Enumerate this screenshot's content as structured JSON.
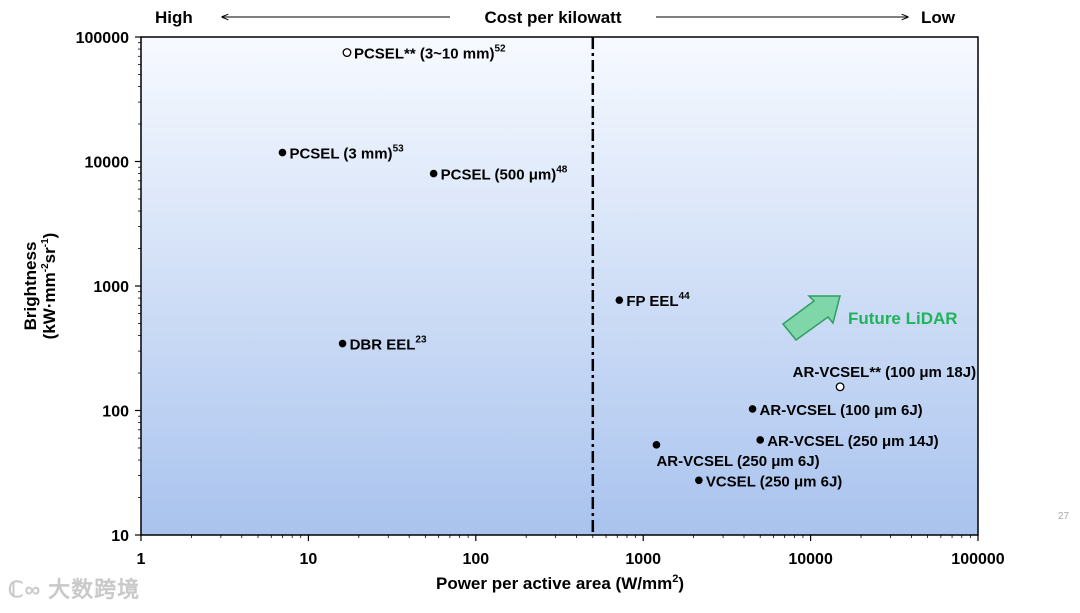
{
  "chart_data": {
    "type": "scatter",
    "xscale": "log",
    "yscale": "log",
    "xlim": [
      1,
      100000
    ],
    "ylim": [
      10,
      100000
    ],
    "xlabel_text": "Power per active area (W/mm",
    "xlabel_sup": "2",
    "xlabel_end": ")",
    "ylabel_line1": "Brightness",
    "ylabel_line2_parts": [
      "(kW·mm",
      "-2",
      "sr",
      "-1",
      ")"
    ],
    "xticks": [
      {
        "value": 1,
        "label": "1"
      },
      {
        "value": 10,
        "label": "10"
      },
      {
        "value": 100,
        "label": "100"
      },
      {
        "value": 1000,
        "label": "1000"
      },
      {
        "value": 10000,
        "label": "10000"
      },
      {
        "value": 100000,
        "label": "100000"
      }
    ],
    "yticks": [
      {
        "value": 10,
        "label": "10"
      },
      {
        "value": 100,
        "label": "100"
      },
      {
        "value": 1000,
        "label": "1000"
      },
      {
        "value": 10000,
        "label": "10000"
      },
      {
        "value": 100000,
        "label": "100000"
      }
    ],
    "divider_x": 500,
    "cost_axis": {
      "high": "High",
      "title": "Cost per kilowatt",
      "low": "Low"
    },
    "future_label": "Future LiDAR",
    "points": [
      {
        "name": "PCSEL** (3~10 mm)",
        "ref": "52",
        "x": 17,
        "y": 75000,
        "filled": false,
        "label_pos": "right"
      },
      {
        "name": "PCSEL (3 mm)",
        "ref": "53",
        "x": 7,
        "y": 11800,
        "filled": true,
        "label_pos": "right"
      },
      {
        "name": "PCSEL (500 μm)",
        "ref": "48",
        "x": 56,
        "y": 8000,
        "filled": true,
        "label_pos": "right"
      },
      {
        "name": "FP EEL",
        "ref": "44",
        "x": 720,
        "y": 770,
        "filled": true,
        "label_pos": "right"
      },
      {
        "name": "DBR EEL",
        "ref": "23",
        "x": 16,
        "y": 345,
        "filled": true,
        "label_pos": "right"
      },
      {
        "name": "AR-VCSEL** (100 μm 18J)",
        "ref": "",
        "x": 15000,
        "y": 155,
        "filled": false,
        "label_pos": "above"
      },
      {
        "name": "AR-VCSEL (100 μm 6J)",
        "ref": "",
        "x": 4500,
        "y": 103,
        "filled": true,
        "label_pos": "right"
      },
      {
        "name": "AR-VCSEL (250 μm 14J)",
        "ref": "",
        "x": 5000,
        "y": 58,
        "filled": true,
        "label_pos": "right"
      },
      {
        "name": "AR-VCSEL (250 μm 6J)",
        "ref": "",
        "x": 1200,
        "y": 53,
        "filled": true,
        "label_pos": "below"
      },
      {
        "name": "VCSEL (250 μm 6J)",
        "ref": "",
        "x": 2150,
        "y": 27.5,
        "filled": true,
        "label_pos": "right"
      }
    ]
  },
  "watermark": "大数跨境",
  "page_number": "27",
  "colors": {
    "future": "#1fb35a",
    "arrow_fill": "#7fd6a8",
    "arrow_stroke": "#2f9e62"
  }
}
